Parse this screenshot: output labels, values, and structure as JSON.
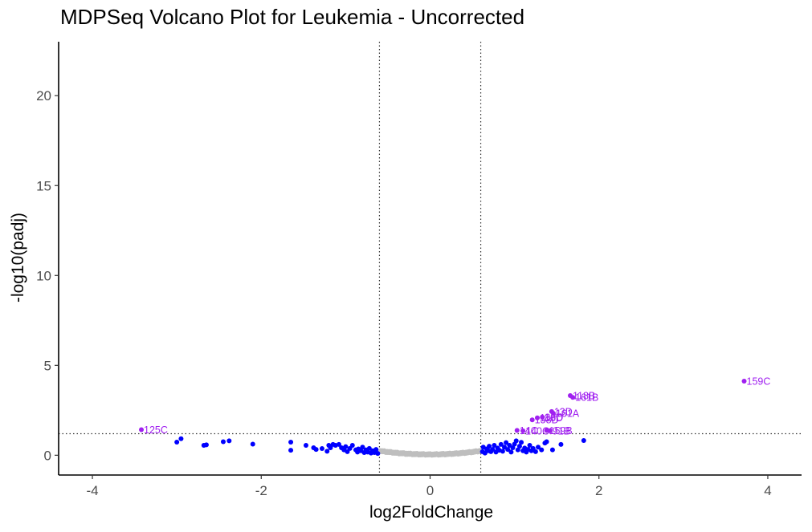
{
  "chart_data": {
    "type": "scatter",
    "title": "MDPSeq Volcano Plot for Leukemia - Uncorrected",
    "xlabel": "log2FoldChange",
    "ylabel": "-log10(padj)",
    "xlim": [
      -4.4,
      4.4
    ],
    "ylim": [
      -1.1,
      23
    ],
    "xticks": [
      -4,
      -2,
      0,
      2,
      4
    ],
    "yticks": [
      0,
      5,
      10,
      15,
      20
    ],
    "grid": false,
    "thresholds": {
      "fold_change": [
        -0.6,
        0.6
      ],
      "padj": 1.2
    },
    "colors": {
      "not_significant": "#bebebe",
      "fold_change_only": "#0000ff",
      "significant": "#a020f0",
      "threshold_line": "#333333"
    },
    "series": [
      {
        "group": "significant",
        "points": [
          {
            "label": "159C",
            "x": 3.72,
            "y": 4.12
          },
          {
            "label": "118B",
            "x": 1.66,
            "y": 3.32
          },
          {
            "label": "161B",
            "x": 1.69,
            "y": 3.22
          },
          {
            "label": "13D",
            "x": 1.44,
            "y": 2.43
          },
          {
            "label": "161A",
            "x": 1.46,
            "y": 2.33
          },
          {
            "label": "86D",
            "x": 1.33,
            "y": 2.12
          },
          {
            "label": "118D",
            "x": 1.27,
            "y": 2.08
          },
          {
            "label": "158D",
            "x": 1.21,
            "y": 1.97
          },
          {
            "label": "14C",
            "x": 1.03,
            "y": 1.38
          },
          {
            "label": "140C",
            "x": 1.1,
            "y": 1.36
          },
          {
            "label": "159B",
            "x": 1.38,
            "y": 1.38
          },
          {
            "label": "91B",
            "x": 1.42,
            "y": 1.36
          },
          {
            "label": "125C",
            "x": -3.42,
            "y": 1.42
          }
        ]
      },
      {
        "group": "fold_change_only",
        "points": [
          [
            -3.0,
            0.73
          ],
          [
            -2.95,
            0.92
          ],
          [
            -2.68,
            0.55
          ],
          [
            -2.65,
            0.58
          ],
          [
            -2.45,
            0.75
          ],
          [
            -2.38,
            0.8
          ],
          [
            -2.1,
            0.62
          ],
          [
            -1.65,
            0.73
          ],
          [
            -1.65,
            0.28
          ],
          [
            -1.47,
            0.55
          ],
          [
            -1.38,
            0.42
          ],
          [
            -1.35,
            0.32
          ],
          [
            -1.28,
            0.37
          ],
          [
            -1.22,
            0.22
          ],
          [
            -1.2,
            0.55
          ],
          [
            -1.18,
            0.42
          ],
          [
            -1.15,
            0.6
          ],
          [
            -1.12,
            0.55
          ],
          [
            -1.08,
            0.6
          ],
          [
            -1.05,
            0.42
          ],
          [
            -1.02,
            0.3
          ],
          [
            -1.0,
            0.48
          ],
          [
            -0.98,
            0.2
          ],
          [
            -0.95,
            0.38
          ],
          [
            -0.92,
            0.55
          ],
          [
            -0.88,
            0.3
          ],
          [
            -0.86,
            0.18
          ],
          [
            -0.85,
            0.35
          ],
          [
            -0.82,
            0.25
          ],
          [
            -0.8,
            0.45
          ],
          [
            -0.78,
            0.15
          ],
          [
            -0.76,
            0.3
          ],
          [
            -0.74,
            0.18
          ],
          [
            -0.72,
            0.38
          ],
          [
            -0.7,
            0.12
          ],
          [
            -0.68,
            0.25
          ],
          [
            -0.66,
            0.15
          ],
          [
            -0.64,
            0.32
          ],
          [
            -0.62,
            0.1
          ],
          [
            0.62,
            0.2
          ],
          [
            0.63,
            0.45
          ],
          [
            0.65,
            0.12
          ],
          [
            0.67,
            0.35
          ],
          [
            0.69,
            0.25
          ],
          [
            0.7,
            0.5
          ],
          [
            0.72,
            0.2
          ],
          [
            0.74,
            0.32
          ],
          [
            0.76,
            0.55
          ],
          [
            0.78,
            0.18
          ],
          [
            0.8,
            0.4
          ],
          [
            0.82,
            0.28
          ],
          [
            0.84,
            0.6
          ],
          [
            0.86,
            0.22
          ],
          [
            0.88,
            0.45
          ],
          [
            0.9,
            0.7
          ],
          [
            0.92,
            0.32
          ],
          [
            0.94,
            0.55
          ],
          [
            0.96,
            0.18
          ],
          [
            0.98,
            0.42
          ],
          [
            1.0,
            0.62
          ],
          [
            1.02,
            0.8
          ],
          [
            1.04,
            0.3
          ],
          [
            1.06,
            0.5
          ],
          [
            1.08,
            0.72
          ],
          [
            1.1,
            0.25
          ],
          [
            1.12,
            0.4
          ],
          [
            1.14,
            0.18
          ],
          [
            1.16,
            0.32
          ],
          [
            1.18,
            0.55
          ],
          [
            1.2,
            0.25
          ],
          [
            1.22,
            0.38
          ],
          [
            1.25,
            0.2
          ],
          [
            1.28,
            0.45
          ],
          [
            1.32,
            0.3
          ],
          [
            1.36,
            0.68
          ],
          [
            1.38,
            0.75
          ],
          [
            1.45,
            0.3
          ],
          [
            1.55,
            0.6
          ],
          [
            1.82,
            0.82
          ]
        ]
      }
    ]
  }
}
